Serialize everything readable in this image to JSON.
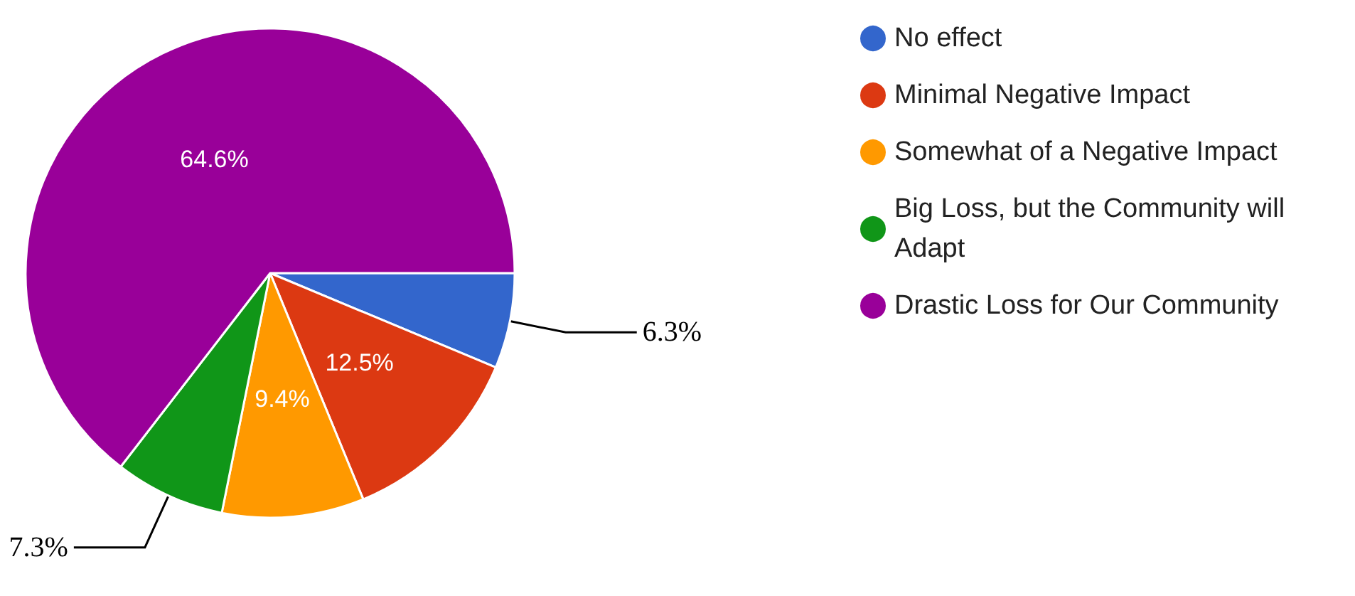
{
  "chart_data": {
    "type": "pie",
    "categories": [
      "No effect",
      "Minimal Negative Impact",
      "Somewhat of a Negative Impact",
      "Big Loss, but the Community will Adapt",
      "Drastic Loss for Our Community"
    ],
    "values": [
      6.3,
      12.5,
      9.4,
      7.3,
      64.6
    ],
    "colors": [
      "#3366cc",
      "#dc3912",
      "#ff9900",
      "#109618",
      "#990099"
    ],
    "value_labels": [
      "6.3%",
      "12.5%",
      "9.4%",
      "7.3%",
      "64.6%"
    ],
    "legend": "top right"
  }
}
